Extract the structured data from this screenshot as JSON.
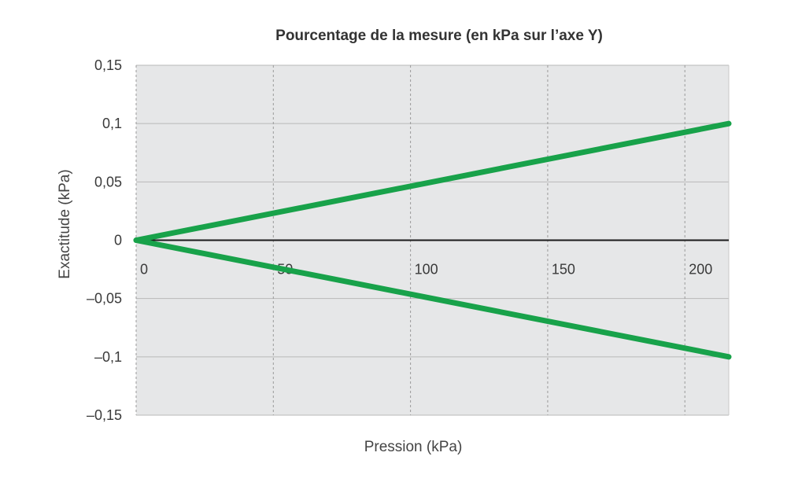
{
  "chart_data": {
    "type": "line",
    "title": "Pourcentage de la mesure (en kPa sur l’axe Y)",
    "xlabel": "Pression (kPa)",
    "ylabel": "Exactitude (kPa)",
    "xlim": [
      0,
      216
    ],
    "ylim": [
      -0.15,
      0.15
    ],
    "x_ticks": [
      0,
      50,
      100,
      150,
      200
    ],
    "x_tick_labels": [
      "0",
      "50",
      "100",
      "150",
      "200"
    ],
    "y_ticks": [
      0.15,
      0.1,
      0.05,
      0,
      -0.05,
      -0.1,
      -0.15
    ],
    "y_tick_labels": [
      "0,15",
      "0,1",
      "0,05",
      "0",
      "–0,05",
      "–0,1",
      "–0,15"
    ],
    "grid": true,
    "background": "#e6e7e8",
    "series": [
      {
        "x": [
          0,
          216
        ],
        "values": [
          0,
          0.1
        ],
        "color": "#18a24a"
      },
      {
        "x": [
          0,
          216
        ],
        "values": [
          0,
          -0.1
        ],
        "color": "#18a24a"
      }
    ],
    "zero_line_color": "#1a1a1a"
  }
}
